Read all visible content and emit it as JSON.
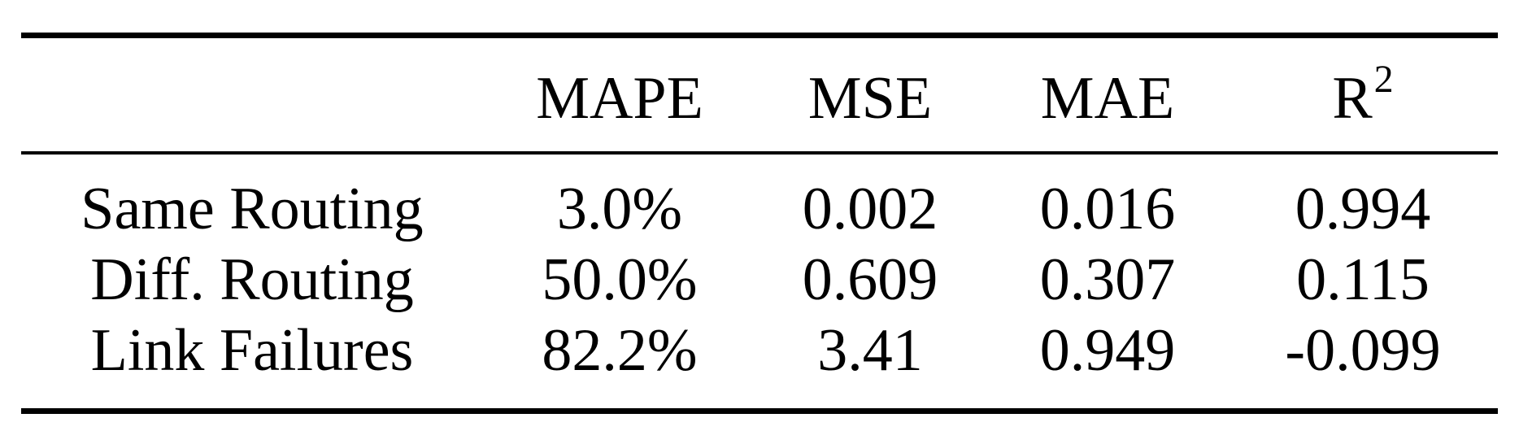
{
  "table": {
    "headers": [
      "",
      "MAPE",
      "MSE",
      "MAE",
      "R",
      "2"
    ],
    "header_r2_base": "R",
    "header_r2_sup": "2",
    "rows": [
      {
        "label": "Same Routing",
        "mape": "3.0%",
        "mse": "0.002",
        "mae": "0.016",
        "r2": "0.994"
      },
      {
        "label": "Diff. Routing",
        "mape": "50.0%",
        "mse": "0.609",
        "mae": "0.307",
        "r2": "0.115"
      },
      {
        "label": "Link Failures",
        "mape": "82.2%",
        "mse": "3.41",
        "mae": "0.949",
        "r2": "-0.099"
      }
    ]
  }
}
